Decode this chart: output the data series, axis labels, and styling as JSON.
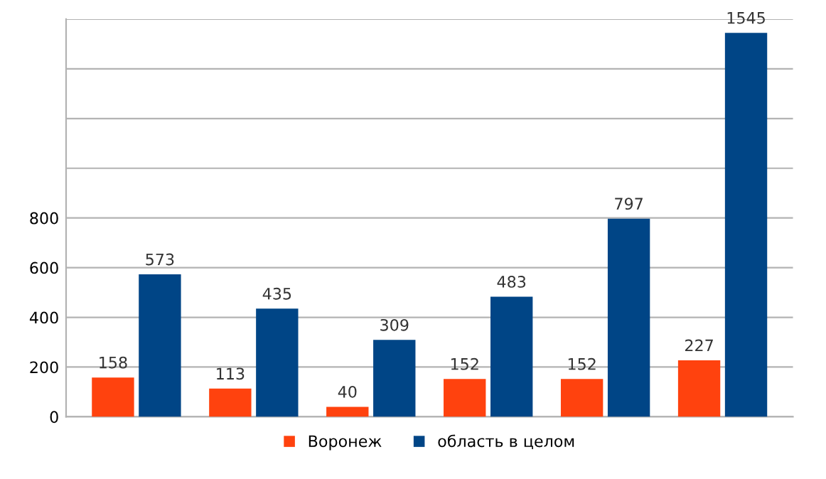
{
  "chart_data": {
    "type": "bar",
    "categories": [
      null,
      null,
      null,
      null,
      null,
      null
    ],
    "series": [
      {
        "name": "Воронеж",
        "color": "#ff420e",
        "values": [
          158,
          113,
          40,
          152,
          152,
          227
        ]
      },
      {
        "name": "область в целом",
        "color": "#004586",
        "values": [
          573,
          435,
          309,
          483,
          797,
          1545
        ]
      }
    ],
    "ylim": [
      0,
      1600
    ],
    "yticks": [
      0,
      200,
      400,
      600,
      800,
      {
        "value": 1000,
        "label": null
      },
      {
        "value": 1200,
        "label": null
      },
      {
        "value": 1400,
        "label": null
      },
      {
        "value": 1600,
        "label": null
      }
    ],
    "grid": "y",
    "legend": "bottom",
    "data_labels": true
  }
}
